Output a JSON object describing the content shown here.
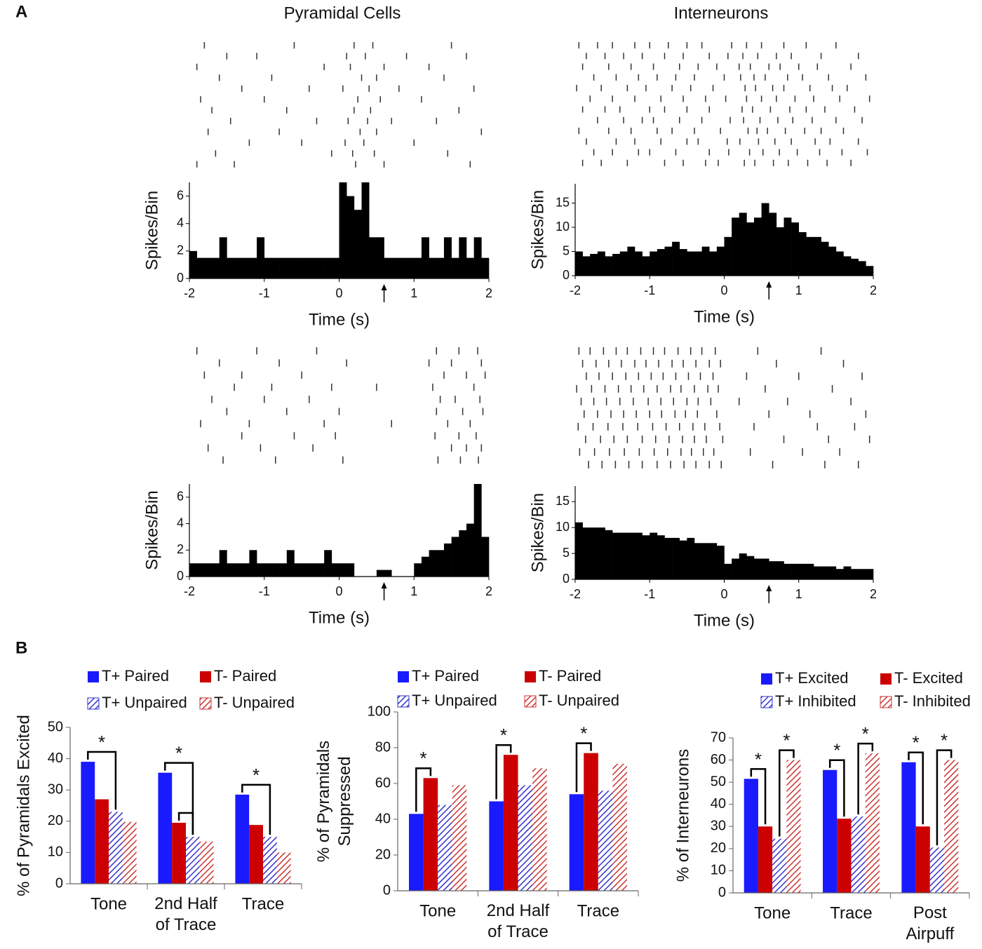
{
  "panel_labels": [
    "A",
    "B"
  ],
  "column_titles": [
    "Pyramidal Cells",
    "Interneurons"
  ],
  "chart_data": [
    {
      "type": "raster",
      "xlim": [
        -2,
        2
      ],
      "color": "#333333",
      "trials": [
        [
          -1.8,
          -0.6,
          0.2,
          0.45,
          1.5
        ],
        [
          -1.5,
          -1.1,
          0.1,
          0.35,
          0.9,
          1.7
        ],
        [
          -1.9,
          -0.2,
          0.15,
          0.6,
          1.2
        ],
        [
          -1.6,
          -0.9,
          0.3,
          0.5,
          1.4
        ],
        [
          -1.3,
          -0.4,
          0.05,
          0.4,
          0.8,
          1.8
        ],
        [
          -1.85,
          -1.0,
          0.25,
          0.55,
          1.1
        ],
        [
          -1.7,
          -0.7,
          0.2,
          0.42,
          1.6
        ],
        [
          -1.45,
          -0.3,
          0.12,
          0.38,
          0.7,
          1.3
        ],
        [
          -1.75,
          -0.8,
          0.28,
          0.5,
          1.9
        ],
        [
          -1.2,
          -0.5,
          0.08,
          0.33,
          1.0
        ],
        [
          -1.65,
          -0.1,
          0.18,
          0.47,
          1.45
        ],
        [
          -1.9,
          -1.4,
          0.22,
          0.6,
          1.75
        ]
      ]
    },
    {
      "type": "histogram",
      "xlabel": "Time (s)",
      "ylabel": "Spikes/Bin",
      "color": "#000000",
      "bins": [
        -2,
        -1.9,
        -1.8,
        -1.7,
        -1.6,
        -1.5,
        -1.4,
        -1.3,
        -1.2,
        -1.1,
        -1,
        -0.9,
        -0.8,
        -0.7,
        -0.6,
        -0.5,
        -0.4,
        -0.3,
        -0.2,
        -0.1,
        0,
        0.1,
        0.2,
        0.3,
        0.4,
        0.5,
        0.6,
        0.7,
        0.8,
        0.9,
        1,
        1.1,
        1.2,
        1.3,
        1.4,
        1.5,
        1.6,
        1.7,
        1.8,
        1.9,
        2
      ],
      "counts": [
        2,
        1.5,
        1.5,
        1.5,
        3,
        1.5,
        1.5,
        1.5,
        1.5,
        3,
        1.5,
        1.5,
        1.5,
        1.5,
        1.5,
        1.5,
        1.5,
        1.5,
        1.5,
        1.5,
        7,
        6,
        5,
        7,
        3,
        3,
        1.5,
        1.5,
        1.5,
        1.5,
        1.5,
        3,
        1.5,
        1.5,
        3,
        1.5,
        3,
        1.5,
        3,
        1.5
      ],
      "xlim": [
        -2,
        2
      ],
      "xticks": [
        -2,
        -1,
        0,
        1,
        2
      ],
      "ylim": [
        0,
        7
      ],
      "yticks": [
        0,
        2,
        4,
        6
      ],
      "event_time": 0.6
    },
    {
      "type": "raster",
      "xlim": [
        -2,
        2
      ],
      "color": "#333333",
      "trials": [
        [
          -1.95,
          -1.7,
          -1.5,
          -1.2,
          -1.0,
          -0.75,
          -0.5,
          -0.3,
          0.1,
          0.3,
          0.5,
          0.8,
          1.1,
          1.5
        ],
        [
          -1.85,
          -1.6,
          -1.35,
          -1.1,
          -0.8,
          -0.55,
          -0.2,
          0.05,
          0.25,
          0.45,
          0.7,
          0.9,
          1.3,
          1.8
        ],
        [
          -1.9,
          -1.55,
          -1.25,
          -0.95,
          -0.6,
          -0.35,
          -0.1,
          0.2,
          0.35,
          0.6,
          0.75,
          1.0,
          1.25,
          1.7
        ],
        [
          -1.75,
          -1.45,
          -1.15,
          -0.9,
          -0.65,
          -0.4,
          0.0,
          0.22,
          0.4,
          0.55,
          0.85,
          1.05,
          1.4,
          1.9
        ],
        [
          -1.98,
          -1.65,
          -1.3,
          -1.05,
          -0.7,
          -0.45,
          -0.15,
          0.28,
          0.42,
          0.65,
          0.8,
          1.15,
          1.45,
          1.65
        ],
        [
          -1.8,
          -1.5,
          -1.2,
          -0.85,
          -0.55,
          -0.25,
          0.02,
          0.3,
          0.5,
          0.7,
          0.95,
          1.2,
          1.55,
          1.95
        ],
        [
          -1.9,
          -1.6,
          -1.4,
          -1.0,
          -0.8,
          -0.5,
          -0.2,
          0.24,
          0.38,
          0.62,
          0.88,
          1.1,
          1.35,
          1.75
        ],
        [
          -1.7,
          -1.35,
          -1.1,
          -0.95,
          -0.6,
          -0.3,
          0.08,
          0.26,
          0.48,
          0.72,
          0.92,
          1.18,
          1.5,
          1.85
        ],
        [
          -1.95,
          -1.55,
          -1.25,
          -0.9,
          -0.7,
          -0.4,
          -0.05,
          0.32,
          0.44,
          0.58,
          0.82,
          1.08,
          1.3,
          1.6
        ],
        [
          -1.85,
          -1.45,
          -1.2,
          -0.85,
          -0.5,
          -0.35,
          0.04,
          0.21,
          0.46,
          0.68,
          0.9,
          1.22,
          1.42,
          1.8
        ],
        [
          -1.75,
          -1.5,
          -1.15,
          -1.0,
          -0.65,
          -0.2,
          0.06,
          0.34,
          0.52,
          0.74,
          0.98,
          1.28,
          1.58,
          1.92
        ],
        [
          -1.9,
          -1.65,
          -1.3,
          -0.8,
          -0.55,
          -0.25,
          -0.08,
          0.27,
          0.41,
          0.66,
          0.86,
          1.12,
          1.38,
          1.7
        ]
      ]
    },
    {
      "type": "histogram",
      "xlabel": "Time (s)",
      "ylabel": "Spikes/Bin",
      "color": "#000000",
      "bins": [
        -2,
        -1.9,
        -1.8,
        -1.7,
        -1.6,
        -1.5,
        -1.4,
        -1.3,
        -1.2,
        -1.1,
        -1,
        -0.9,
        -0.8,
        -0.7,
        -0.6,
        -0.5,
        -0.4,
        -0.3,
        -0.2,
        -0.1,
        0,
        0.1,
        0.2,
        0.3,
        0.4,
        0.5,
        0.6,
        0.7,
        0.8,
        0.9,
        1,
        1.1,
        1.2,
        1.3,
        1.4,
        1.5,
        1.6,
        1.7,
        1.8,
        1.9,
        2
      ],
      "counts": [
        5,
        4,
        4.5,
        5,
        4,
        4.5,
        5,
        6,
        5,
        4,
        5,
        5.5,
        6,
        7,
        5.5,
        5,
        5,
        6,
        5,
        6,
        8,
        12,
        13,
        11,
        12,
        15,
        13,
        10,
        12,
        11,
        9,
        8,
        8,
        7,
        6,
        5,
        4,
        3.5,
        3,
        2
      ],
      "xlim": [
        -2,
        2
      ],
      "xticks": [
        -2,
        -1,
        0,
        1,
        2
      ],
      "ylim": [
        0,
        19
      ],
      "yticks": [
        0,
        5,
        10,
        15
      ],
      "event_time": 0.6
    },
    {
      "type": "raster",
      "xlim": [
        -2,
        2
      ],
      "color": "#333333",
      "trials": [
        [
          -1.9,
          -1.1,
          -0.3,
          1.3,
          1.6,
          1.85
        ],
        [
          -1.6,
          -0.8,
          0.1,
          1.2,
          1.5,
          1.9
        ],
        [
          -1.8,
          -1.3,
          -0.5,
          1.4,
          1.7,
          1.95
        ],
        [
          -1.4,
          -0.9,
          -0.1,
          0.5,
          1.25,
          1.8
        ],
        [
          -1.7,
          -1.0,
          -0.4,
          1.35,
          1.55,
          1.88
        ],
        [
          -1.5,
          -0.7,
          0.0,
          1.3,
          1.65,
          1.92
        ],
        [
          -1.85,
          -1.2,
          -0.2,
          0.7,
          1.45,
          1.75
        ],
        [
          -1.3,
          -0.6,
          -0.05,
          1.28,
          1.6,
          1.83
        ],
        [
          -1.75,
          -1.05,
          -0.35,
          1.5,
          1.7,
          1.9
        ],
        [
          -1.55,
          -0.85,
          0.05,
          1.32,
          1.62,
          1.86
        ]
      ]
    },
    {
      "type": "histogram",
      "xlabel": "Time (s)",
      "ylabel": "Spikes/Bin",
      "color": "#000000",
      "bins": [
        -2,
        -1.9,
        -1.8,
        -1.7,
        -1.6,
        -1.5,
        -1.4,
        -1.3,
        -1.2,
        -1.1,
        -1,
        -0.9,
        -0.8,
        -0.7,
        -0.6,
        -0.5,
        -0.4,
        -0.3,
        -0.2,
        -0.1,
        0,
        0.1,
        0.2,
        0.3,
        0.4,
        0.5,
        0.6,
        0.7,
        0.8,
        0.9,
        1,
        1.1,
        1.2,
        1.3,
        1.4,
        1.5,
        1.6,
        1.7,
        1.8,
        1.9,
        2
      ],
      "counts": [
        1,
        1,
        1,
        1,
        2,
        1,
        1,
        1,
        2,
        1,
        1,
        1,
        1,
        2,
        1,
        1,
        1,
        1,
        2,
        1,
        1,
        1,
        0,
        0,
        0,
        0.5,
        0.5,
        0,
        0,
        0,
        1,
        1.5,
        2,
        2,
        2.5,
        3,
        3.5,
        4,
        7,
        3
      ],
      "xlim": [
        -2,
        2
      ],
      "xticks": [
        -2,
        -1,
        0,
        1,
        2
      ],
      "ylim": [
        0,
        7
      ],
      "yticks": [
        0,
        2,
        4,
        6
      ],
      "event_time": 0.6
    },
    {
      "type": "raster",
      "xlim": [
        -2,
        2
      ],
      "color": "#333333",
      "trials": [
        [
          -1.95,
          -1.8,
          -1.62,
          -1.45,
          -1.3,
          -1.12,
          -0.95,
          -0.8,
          -0.62,
          -0.45,
          -0.3,
          -0.12,
          0.45,
          1.3
        ],
        [
          -1.9,
          -1.72,
          -1.55,
          -1.38,
          -1.2,
          -1.05,
          -0.88,
          -0.7,
          -0.55,
          -0.38,
          -0.2,
          -0.05,
          0.7,
          1.6
        ],
        [
          -1.85,
          -1.68,
          -1.5,
          -1.32,
          -1.15,
          -0.98,
          -0.82,
          -0.65,
          -0.48,
          -0.32,
          -0.15,
          0.3,
          1.0,
          1.85
        ],
        [
          -1.98,
          -1.78,
          -1.6,
          -1.42,
          -1.25,
          -1.08,
          -0.9,
          -0.72,
          -0.58,
          -0.4,
          -0.22,
          -0.08,
          0.55,
          1.45
        ],
        [
          -1.92,
          -1.75,
          -1.58,
          -1.4,
          -1.22,
          -1.02,
          -0.85,
          -0.68,
          -0.5,
          -0.35,
          -0.18,
          0.2,
          0.85,
          1.7
        ],
        [
          -1.88,
          -1.7,
          -1.52,
          -1.35,
          -1.18,
          -1.0,
          -0.84,
          -0.66,
          -0.52,
          -0.36,
          -0.1,
          0.6,
          1.15,
          1.9
        ],
        [
          -1.96,
          -1.76,
          -1.56,
          -1.36,
          -1.16,
          -0.96,
          -0.78,
          -0.6,
          -0.42,
          -0.26,
          -0.06,
          0.4,
          1.25,
          1.75
        ],
        [
          -1.86,
          -1.66,
          -1.48,
          -1.3,
          -1.1,
          -0.92,
          -0.74,
          -0.56,
          -0.4,
          -0.24,
          -0.02,
          0.8,
          1.4,
          1.95
        ],
        [
          -1.94,
          -1.74,
          -1.54,
          -1.34,
          -1.14,
          -0.94,
          -0.76,
          -0.58,
          -0.44,
          -0.28,
          -0.14,
          0.35,
          1.05,
          1.55
        ],
        [
          -1.82,
          -1.64,
          -1.46,
          -1.28,
          -1.1,
          -0.9,
          -0.72,
          -0.54,
          -0.38,
          -0.2,
          -0.04,
          0.65,
          1.35,
          1.8
        ]
      ]
    },
    {
      "type": "histogram",
      "xlabel": "Time (s)",
      "ylabel": "Spikes/Bin",
      "color": "#000000",
      "bins": [
        -2,
        -1.9,
        -1.8,
        -1.7,
        -1.6,
        -1.5,
        -1.4,
        -1.3,
        -1.2,
        -1.1,
        -1,
        -0.9,
        -0.8,
        -0.7,
        -0.6,
        -0.5,
        -0.4,
        -0.3,
        -0.2,
        -0.1,
        0,
        0.1,
        0.2,
        0.3,
        0.4,
        0.5,
        0.6,
        0.7,
        0.8,
        0.9,
        1,
        1.1,
        1.2,
        1.3,
        1.4,
        1.5,
        1.6,
        1.7,
        1.8,
        1.9,
        2
      ],
      "counts": [
        11,
        10,
        10,
        10,
        9.5,
        9,
        9,
        9,
        9,
        8.5,
        9,
        8.5,
        8,
        8,
        7.5,
        8,
        7,
        7,
        7,
        6.5,
        3,
        4,
        5,
        4.5,
        4,
        4,
        3.5,
        3.5,
        3,
        3,
        3,
        3,
        2.5,
        2.5,
        2.5,
        2,
        2.5,
        2,
        2,
        2
      ],
      "xlim": [
        -2,
        2
      ],
      "xticks": [
        -2,
        -1,
        0,
        1,
        2
      ],
      "ylim": [
        0,
        18
      ],
      "yticks": [
        0,
        5,
        10,
        15
      ],
      "event_time": 0.6
    },
    {
      "type": "bar",
      "ylabel": "% of Pyramidals Excited",
      "categories": [
        "Tone",
        "2nd Half of Trace",
        "Trace"
      ],
      "series": [
        {
          "name": "T+ Paired",
          "color": "#1a1aff",
          "hatch": false,
          "values": [
            39,
            35.5,
            28.5
          ]
        },
        {
          "name": "T- Paired",
          "color": "#cc0000",
          "hatch": false,
          "values": [
            27,
            19.5,
            18.8
          ]
        },
        {
          "name": "T+ Unpaired",
          "color": "#3333cc",
          "hatch": true,
          "values": [
            23,
            15,
            15
          ]
        },
        {
          "name": "T- Unpaired",
          "color": "#cc3333",
          "hatch": true,
          "values": [
            19.8,
            13.5,
            10
          ]
        }
      ],
      "ylim": [
        0,
        50
      ],
      "yticks": [
        0,
        10,
        20,
        30,
        40,
        50
      ],
      "annotations": [
        "*",
        "*",
        "*"
      ]
    },
    {
      "type": "bar",
      "ylabel": "% of Pyramidals Suppressed",
      "categories": [
        "Tone",
        "2nd Half of Trace",
        "Trace"
      ],
      "series": [
        {
          "name": "T+ Paired",
          "color": "#1a1aff",
          "hatch": false,
          "values": [
            43,
            50,
            54
          ]
        },
        {
          "name": "T- Paired",
          "color": "#cc0000",
          "hatch": false,
          "values": [
            63,
            76,
            77
          ]
        },
        {
          "name": "T+ Unpaired",
          "color": "#3333cc",
          "hatch": true,
          "values": [
            48,
            59,
            56
          ]
        },
        {
          "name": "T- Unpaired",
          "color": "#cc3333",
          "hatch": true,
          "values": [
            59,
            68.5,
            71
          ]
        }
      ],
      "ylim": [
        0,
        100
      ],
      "yticks": [
        0,
        20,
        40,
        60,
        80,
        100
      ],
      "annotations": [
        "*",
        "*",
        "*"
      ]
    },
    {
      "type": "bar",
      "ylabel": "% of Interneurons",
      "categories": [
        "Tone",
        "Trace",
        "Post Airpuff"
      ],
      "series": [
        {
          "name": "T+ Excited",
          "color": "#1a1aff",
          "hatch": false,
          "values": [
            51.5,
            55.5,
            59
          ]
        },
        {
          "name": "T- Excited",
          "color": "#cc0000",
          "hatch": false,
          "values": [
            30,
            33.5,
            30
          ]
        },
        {
          "name": "T+ Inhibited",
          "color": "#3333cc",
          "hatch": true,
          "values": [
            24.5,
            34.5,
            20.5
          ]
        },
        {
          "name": "T- Inhibited",
          "color": "#cc3333",
          "hatch": true,
          "values": [
            60,
            63,
            60
          ]
        }
      ],
      "ylim": [
        0,
        70
      ],
      "yticks": [
        0,
        10,
        20,
        30,
        40,
        50,
        60,
        70
      ],
      "annotations": [
        "*",
        "*",
        "*",
        "*",
        "*",
        "*"
      ]
    }
  ]
}
